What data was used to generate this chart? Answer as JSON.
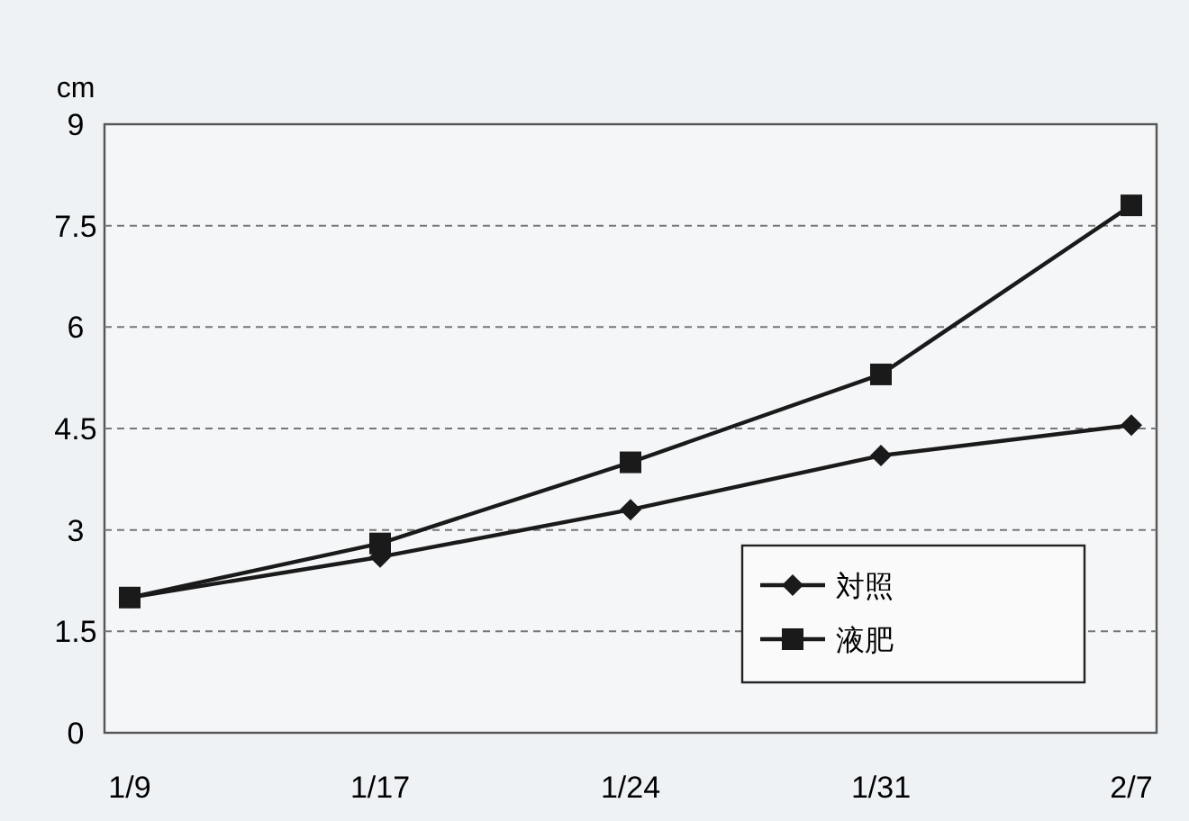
{
  "chart_data": {
    "type": "line",
    "ylabel": "cm",
    "categories": [
      "1/9",
      "1/17",
      "1/24",
      "1/31",
      "2/7"
    ],
    "series": [
      {
        "name": "対照",
        "color": "#1a1a1a",
        "marker": "diamond",
        "values": [
          2.0,
          2.6,
          3.3,
          4.1,
          4.55
        ]
      },
      {
        "name": "液肥",
        "color": "#1a1a1a",
        "marker": "square",
        "values": [
          2.0,
          2.8,
          4.0,
          5.3,
          7.8
        ]
      }
    ],
    "ylim": [
      0,
      9
    ],
    "yticks": [
      0,
      1.5,
      3,
      4.5,
      6,
      7.5,
      9
    ],
    "grid": "y",
    "legend": "bottom right"
  }
}
